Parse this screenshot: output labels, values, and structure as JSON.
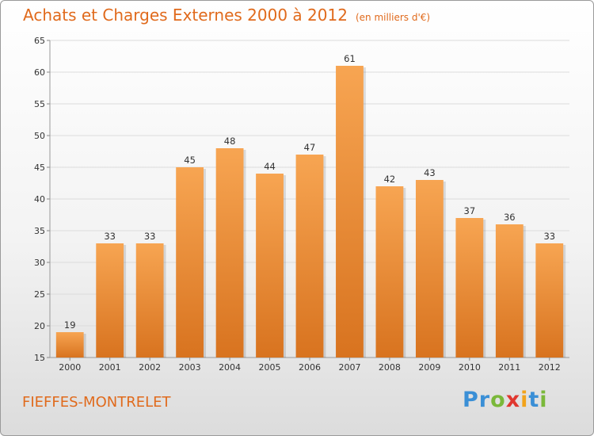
{
  "header": {
    "title": "Achats et Charges Externes 2000 à 2012",
    "subtitle": "(en milliers d'€)"
  },
  "footer": {
    "commune": "FIEFFES-MONTRELET",
    "logo": {
      "letters": [
        "P",
        "r",
        "o",
        "x",
        "i",
        "t",
        "i"
      ],
      "colors": [
        "#3a8fd6",
        "#3a8fd6",
        "#7ab83a",
        "#e0372f",
        "#f2a31b",
        "#3a8fd6",
        "#7ab83a"
      ]
    }
  },
  "chart_data": {
    "type": "bar",
    "title": "Achats et Charges Externes 2000 à 2012",
    "subtitle": "(en milliers d'€)",
    "categories": [
      "2000",
      "2001",
      "2002",
      "2003",
      "2004",
      "2005",
      "2006",
      "2007",
      "2008",
      "2009",
      "2010",
      "2011",
      "2012"
    ],
    "values": [
      19,
      33,
      33,
      45,
      48,
      44,
      47,
      61,
      42,
      43,
      37,
      36,
      33
    ],
    "ylim": [
      15,
      65
    ],
    "yticks": [
      15,
      20,
      25,
      30,
      35,
      40,
      45,
      50,
      55,
      60,
      65
    ],
    "grid": true,
    "bar_color_top": "#f7a552",
    "bar_color_bottom": "#d8731f"
  }
}
